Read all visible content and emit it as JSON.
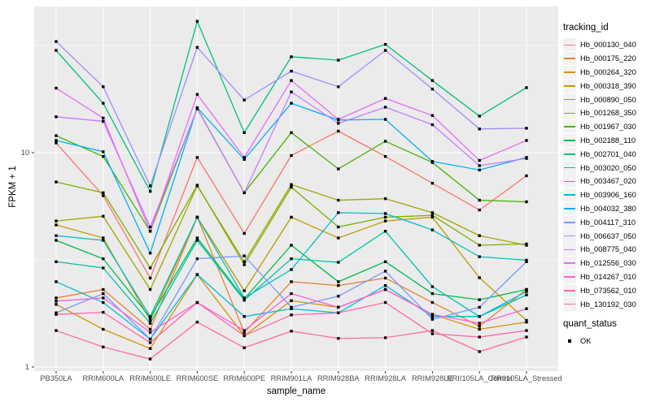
{
  "figure": {
    "bg": "#FFFFFF",
    "panel_bg": "#EBEBEB",
    "grid_color": "#FFFFFF",
    "axis_text_color": "#4D4D4D",
    "tick_color": "#333333",
    "marker_color": "#000000"
  },
  "chart_data": {
    "type": "line",
    "title": "",
    "xlabel": "sample_name",
    "ylabel": "FPKM + 1",
    "y_scale": "log10",
    "grid": true,
    "legend_position": "right",
    "y_ticks": [
      {
        "label": "10",
        "value": 10
      },
      {
        "label": "1",
        "value": 1
      }
    ],
    "y_minor_values": [
      3.1623,
      31.623
    ],
    "ylim": [
      0.94,
      47
    ],
    "categories": [
      "PB350LA",
      "RRIM600LA",
      "RRIM600LE",
      "RRIM600SE",
      "RRIM600PE",
      "RRIM901LA",
      "RRIM928BA",
      "RRIM928LA",
      "RRIM928LE",
      "RRII105LA_Control",
      "RRII105LA_Stressed"
    ],
    "series": [
      {
        "name": "Hb_000130_040",
        "color": "#F8766D",
        "values": [
          11.1,
          6.3,
          2.6,
          9.5,
          4.2,
          9.7,
          12.6,
          9.6,
          7.2,
          5.4,
          7.8
        ]
      },
      {
        "name": "Hb_000175_220",
        "color": "#EA8331",
        "values": [
          2.1,
          2.3,
          1.5,
          5.0,
          1.45,
          2.5,
          2.4,
          2.6,
          2.0,
          1.55,
          2.3
        ]
      },
      {
        "name": "Hb_000264_320",
        "color": "#D89000",
        "values": [
          1.96,
          1.5,
          1.22,
          2.7,
          1.4,
          2.04,
          1.9,
          2.3,
          1.76,
          1.5,
          1.62
        ]
      },
      {
        "name": "Hb_000318_390",
        "color": "#C09B00",
        "values": [
          4.6,
          4.0,
          1.65,
          5.0,
          2.27,
          5.0,
          4.0,
          4.8,
          5.0,
          2.61,
          1.65
        ]
      },
      {
        "name": "Hb_000890_050",
        "color": "#A3A500",
        "values": [
          4.8,
          5.05,
          2.3,
          7.0,
          3.1,
          7.1,
          6.0,
          6.1,
          5.25,
          4.1,
          3.7
        ]
      },
      {
        "name": "Hb_001268_350",
        "color": "#7CAE00",
        "values": [
          7.3,
          6.5,
          2.9,
          7.05,
          3.0,
          6.9,
          4.5,
          5.0,
          5.1,
          3.7,
          3.75
        ]
      },
      {
        "name": "Hb_001967_030",
        "color": "#49B500",
        "values": [
          12.0,
          9.6,
          4.3,
          16.1,
          6.5,
          12.4,
          8.4,
          11.3,
          9.0,
          6.0,
          5.9
        ]
      },
      {
        "name": "Hb_002188_110",
        "color": "#00BB4E",
        "values": [
          3.9,
          3.2,
          1.7,
          4.0,
          2.08,
          3.7,
          2.5,
          3.1,
          2.2,
          2.06,
          2.3
        ]
      },
      {
        "name": "Hb_002701_040",
        "color": "#00BF7D",
        "values": [
          30,
          17,
          6.6,
          41,
          12.4,
          28,
          27,
          32,
          21.7,
          14.8,
          20.1
        ]
      },
      {
        "name": "Hb_003020_050",
        "color": "#00C1A7",
        "values": [
          3.1,
          2.9,
          1.6,
          3.9,
          2.05,
          3.2,
          3.08,
          4.3,
          2.37,
          1.72,
          2.17
        ]
      },
      {
        "name": "Hb_003467_020",
        "color": "#00BFC4",
        "values": [
          4.1,
          3.9,
          1.72,
          5.0,
          2.1,
          2.85,
          5.25,
          5.2,
          4.36,
          3.27,
          3.15
        ]
      },
      {
        "name": "Hb_003906_160",
        "color": "#00BADE",
        "values": [
          2.5,
          2.0,
          1.35,
          2.7,
          1.72,
          1.87,
          1.79,
          2.4,
          1.72,
          1.72,
          2.25
        ]
      },
      {
        "name": "Hb_004032_380",
        "color": "#00B0F6",
        "values": [
          11.4,
          10.1,
          3.4,
          16.2,
          9.3,
          17.0,
          14.2,
          14.3,
          9.1,
          8.3,
          9.5
        ]
      },
      {
        "name": "Hb_004117_310",
        "color": "#7997FF",
        "values": [
          1.79,
          2.2,
          1.35,
          3.2,
          3.3,
          1.9,
          2.14,
          2.8,
          1.67,
          1.9,
          3.1
        ]
      },
      {
        "name": "Hb_006637_050",
        "color": "#9F8CFF",
        "values": [
          33,
          20.3,
          7.0,
          31,
          17.6,
          24,
          20.3,
          30,
          19.8,
          12.9,
          13.0
        ]
      },
      {
        "name": "Hb_008775_040",
        "color": "#C77CFF",
        "values": [
          14.7,
          14.0,
          4.5,
          16.0,
          6.5,
          19.2,
          13.7,
          16.3,
          13.5,
          8.7,
          9.4
        ]
      },
      {
        "name": "Hb_012556_030",
        "color": "#E76BF3",
        "values": [
          20,
          14.5,
          4.3,
          18.7,
          9.5,
          21.7,
          14.3,
          17.9,
          14.9,
          9.2,
          11.4
        ]
      },
      {
        "name": "Hb_014267_010",
        "color": "#FB61D7",
        "values": [
          2.03,
          2.1,
          1.45,
          2.0,
          1.48,
          2.2,
          1.9,
          2.3,
          1.76,
          1.6,
          1.87
        ]
      },
      {
        "name": "Hb_073562_010",
        "color": "#FF65AC",
        "values": [
          1.76,
          1.8,
          1.3,
          2.0,
          1.4,
          1.75,
          1.79,
          2.0,
          1.43,
          1.38,
          1.48
        ]
      },
      {
        "name": "Hb_130192_030",
        "color": "#FF6C90",
        "values": [
          1.48,
          1.24,
          1.09,
          1.62,
          1.23,
          1.47,
          1.36,
          1.37,
          1.48,
          1.18,
          1.38
        ]
      }
    ],
    "legend": {
      "title": "tracking_id",
      "quant": {
        "title": "quant_status",
        "items": [
          "OK"
        ]
      }
    }
  }
}
